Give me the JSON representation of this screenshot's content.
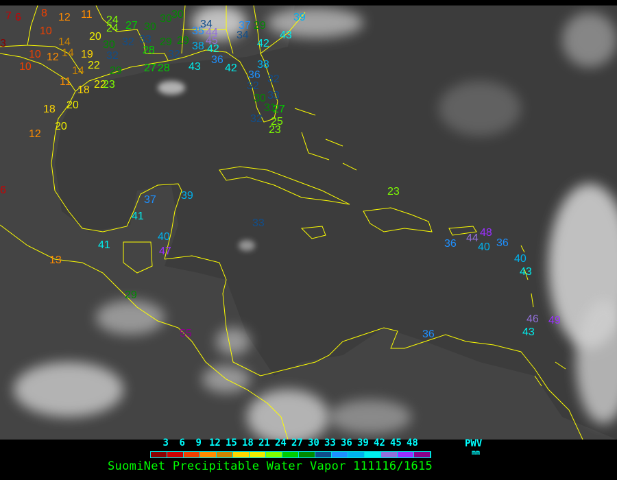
{
  "legend": {
    "ticks": [
      "3",
      "6",
      "9",
      "12",
      "15",
      "18",
      "21",
      "24",
      "27",
      "30",
      "33",
      "36",
      "39",
      "42",
      "45",
      "48"
    ],
    "colors": [
      "#8b0000",
      "#cc0000",
      "#ee4000",
      "#ff8c00",
      "#cd8500",
      "#ffd700",
      "#eeee00",
      "#7fff00",
      "#00cd00",
      "#008b00",
      "#104e8b",
      "#1e90ff",
      "#00b2ee",
      "#00eeee",
      "#9370db",
      "#9b30ff",
      "#8b008b"
    ],
    "unit_label": "PWV",
    "unit": "mm"
  },
  "title": "SuomiNet Precipitable Water Vapor 111116/1615",
  "coastline_color": "#ffff00",
  "stations": [
    "7",
    "6",
    "8",
    "12",
    "11",
    "10",
    "3",
    "14",
    "10",
    "12",
    "14",
    "19",
    "10",
    "22",
    "14",
    "20",
    "24",
    "24",
    "27",
    "30",
    "30",
    "30",
    "32",
    "33",
    "30",
    "32",
    "29",
    "29",
    "28",
    "32",
    "27",
    "28",
    "22",
    "29",
    "11",
    "18",
    "23",
    "18",
    "20",
    "20",
    "12",
    "35",
    "34",
    "44",
    "45",
    "38",
    "42",
    "43",
    "36",
    "42",
    "37",
    "29",
    "34",
    "42",
    "43",
    "39",
    "38",
    "36",
    "32",
    "32",
    "30",
    "33",
    "31",
    "27",
    "32",
    "25",
    "23",
    "6",
    "23",
    "37",
    "39",
    "41",
    "33",
    "40",
    "41",
    "47",
    "13",
    "29",
    "55",
    "36",
    "44",
    "48",
    "40",
    "36",
    "40",
    "43",
    "46",
    "49",
    "43",
    "36"
  ]
}
